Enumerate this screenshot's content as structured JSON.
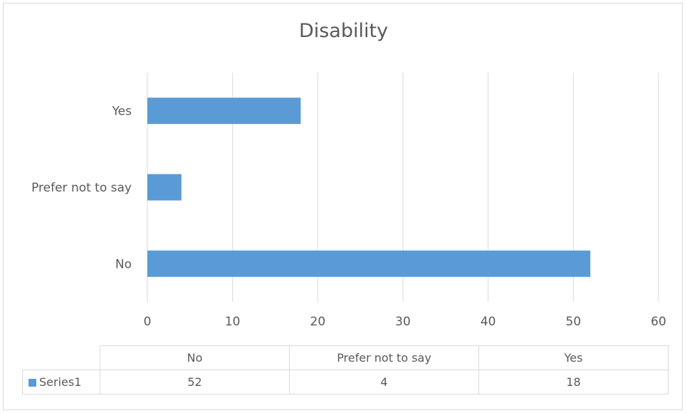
{
  "chart_data": {
    "type": "bar",
    "orientation": "horizontal",
    "title": "Disability",
    "categories": [
      "No",
      "Prefer not to say",
      "Yes"
    ],
    "series": [
      {
        "name": "Series1",
        "values": [
          52,
          4,
          18
        ],
        "color": "#5b9bd5"
      }
    ],
    "xlim": [
      0,
      60
    ],
    "x_ticks": [
      0,
      10,
      20,
      30,
      40,
      50,
      60
    ],
    "grid": true,
    "data_table": {
      "header": [
        "No",
        "Prefer not to say",
        "Yes"
      ],
      "rows": [
        {
          "label": "Series1",
          "values": [
            52,
            4,
            18
          ]
        }
      ]
    }
  }
}
